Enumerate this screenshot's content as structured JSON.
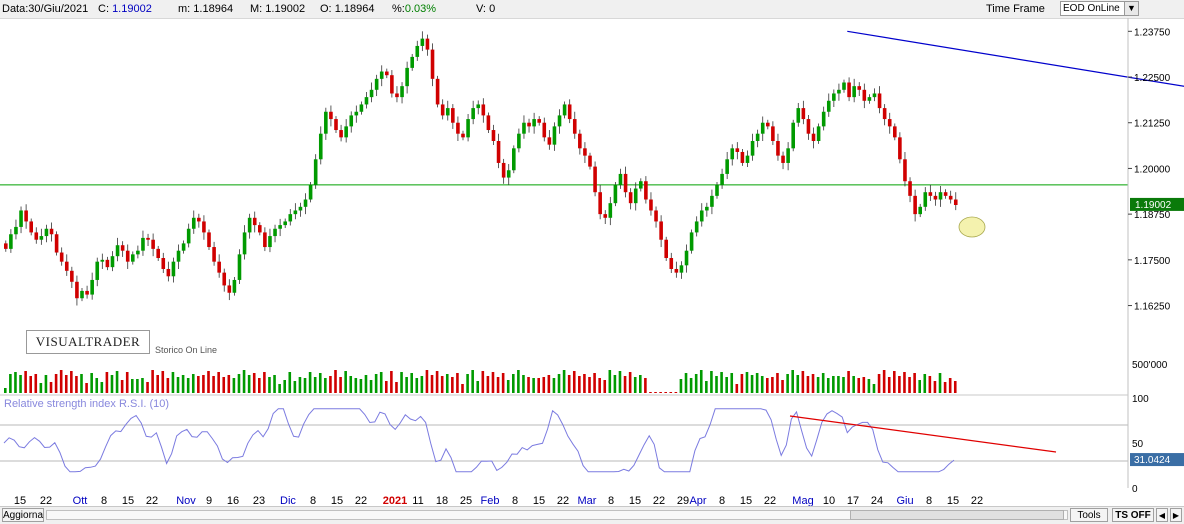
{
  "header": {
    "date_label": "Data:",
    "date_value": "30/Giu/2021",
    "close_label": "C:",
    "close_value": "1.19002",
    "min_label": "m:",
    "min_value": "1.18964",
    "max_label": "M:",
    "max_value": "1.19002",
    "open_label": "O:",
    "open_value": "1.18964",
    "pct_label": "%:",
    "pct_value": "0.03%",
    "vol_label": "V:",
    "vol_value": "0",
    "time_frame_label": "Time Frame",
    "time_frame_value": "EOD OnLine"
  },
  "watermark": {
    "logo_text": "VISUALTRADER",
    "sub_text": "Storico On Line"
  },
  "indicators": {
    "rsi_label": "Relative strength index R.S.I. (10)",
    "rsi_value": "31.0424"
  },
  "footer": {
    "aggiorna": "Aggiorna",
    "tools": "Tools",
    "ts_off": "TS OFF"
  },
  "colors": {
    "up": "#009a00",
    "down": "#d00000",
    "trend": "#0000cc",
    "level": "#00a000",
    "rsi": "#7b7be0",
    "rsi_trend": "#e00000",
    "highlight": "#f3f0a0"
  },
  "chart_data": {
    "type": "candlestick",
    "title": "",
    "last_price": "1.19002",
    "price_range": [
      1.158,
      1.2395
    ],
    "price_ticks": [
      "1.23750",
      "1.22500",
      "1.21250",
      "1.20000",
      "1.18750",
      "1.17500",
      "1.16250"
    ],
    "horizontal_level": 1.1955,
    "trendline": {
      "from": {
        "bar": 166,
        "price": 1.2375
      },
      "to": {
        "bar": 435,
        "price": 1.1765
      }
    },
    "close_series": [
      1.178,
      1.182,
      1.184,
      1.1885,
      1.1855,
      1.1825,
      1.1805,
      1.1815,
      1.1835,
      1.182,
      1.177,
      1.1745,
      1.172,
      1.169,
      1.1645,
      1.1665,
      1.1655,
      1.1695,
      1.1745,
      1.175,
      1.173,
      1.176,
      1.179,
      1.1775,
      1.1745,
      1.1765,
      1.1775,
      1.181,
      1.1805,
      1.178,
      1.1755,
      1.1725,
      1.1705,
      1.1745,
      1.1775,
      1.1795,
      1.1835,
      1.1865,
      1.1855,
      1.1825,
      1.1785,
      1.1745,
      1.1715,
      1.168,
      1.166,
      1.1695,
      1.1765,
      1.1825,
      1.1865,
      1.1845,
      1.1825,
      1.1785,
      1.1815,
      1.1835,
      1.1845,
      1.1855,
      1.1875,
      1.1885,
      1.1895,
      1.1915,
      1.1955,
      1.2025,
      1.2095,
      1.2155,
      1.2135,
      1.2105,
      1.2085,
      1.2115,
      1.2145,
      1.2155,
      1.2175,
      1.2195,
      1.2215,
      1.2245,
      1.2265,
      1.2255,
      1.2205,
      1.2195,
      1.2225,
      1.2275,
      1.2305,
      1.2335,
      1.2355,
      1.2325,
      1.2245,
      1.2175,
      1.2145,
      1.2165,
      1.2125,
      1.2095,
      1.2085,
      1.2135,
      1.2165,
      1.2175,
      1.2145,
      1.2105,
      1.2075,
      1.2015,
      1.1975,
      1.1995,
      1.2055,
      1.2095,
      1.2125,
      1.2115,
      1.2135,
      1.2125,
      1.2085,
      1.2065,
      1.2115,
      1.2145,
      1.2175,
      1.2135,
      1.2095,
      1.2055,
      1.2035,
      1.2005,
      1.1935,
      1.1875,
      1.1865,
      1.1905,
      1.1955,
      1.1985,
      1.1935,
      1.1905,
      1.1945,
      1.1965,
      1.1915,
      1.1885,
      1.1855,
      1.1805,
      1.1755,
      1.1725,
      1.1715,
      1.1735,
      1.1775,
      1.1825,
      1.1855,
      1.1885,
      1.1895,
      1.1925,
      1.1955,
      1.1985,
      1.2025,
      1.2055,
      1.2045,
      1.2015,
      1.2035,
      1.2075,
      1.2095,
      1.2125,
      1.2115,
      1.2075,
      1.2035,
      1.2015,
      1.2055,
      1.2125,
      1.2165,
      1.2135,
      1.2095,
      1.2075,
      1.2115,
      1.2155,
      1.2185,
      1.2205,
      1.2215,
      1.2235,
      1.2195,
      1.2225,
      1.2215,
      1.2185,
      1.2195,
      1.2205,
      1.2165,
      1.2135,
      1.2115,
      1.2085,
      1.2025,
      1.1965,
      1.1925,
      1.1875,
      1.1895,
      1.1935,
      1.1925,
      1.1915,
      1.1935,
      1.1925,
      1.1915,
      1.19
    ]
  }
}
